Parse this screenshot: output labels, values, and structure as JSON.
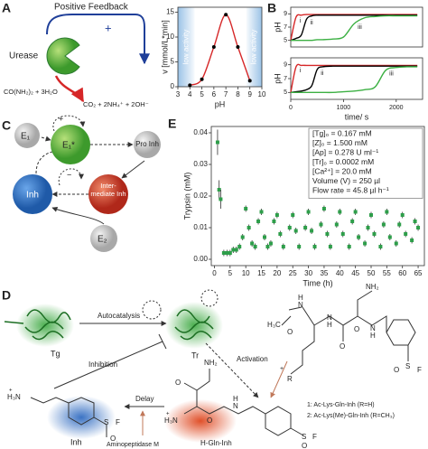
{
  "panel_labels": [
    "A",
    "B",
    "C",
    "D",
    "E"
  ],
  "diagram_a": {
    "feedback": "Positive Feedback",
    "plus": "+",
    "enzyme": "Urease",
    "substrate": "CO(NH₂)₂ + 3H₂O",
    "products": "CO₂ + 2NH₄⁺ + 2OH⁻"
  },
  "diagram_c": {
    "e1": "E₁",
    "e1_active": "E₁*",
    "pro_inh": "Pro Inh",
    "inh": "Inh",
    "intermediate": "Inter-mediate Inh",
    "e2": "E₂",
    "plus": "+",
    "minus": "−"
  },
  "diagram_d": {
    "tg": "Tg",
    "autocatalysis": "Autocatalysis",
    "tr": "Tr",
    "inhibition": "Inhibition",
    "activation": "Activation",
    "delay": "Delay",
    "inh": "Inh",
    "h_gln_inh": "H-Gln-Inh",
    "aminopeptidase": "Aminopeptidase M",
    "compound_1": "1: Ac-Lys-Gln-Inh (R=H)",
    "compound_2": "2: Ac-Lys(Me)-Gln-Inh (R=CH₃)",
    "atoms": [
      "NH₂",
      "O",
      "H₃C",
      "N",
      "H",
      "O",
      "H",
      "N",
      "O",
      "N",
      "H",
      "R",
      "+",
      "S",
      "O",
      "F",
      "H₃N",
      "+",
      "S",
      "O",
      "F",
      "NH₂",
      "O",
      "H₃N",
      "+",
      "O",
      "N",
      "H",
      "S",
      "O",
      "F"
    ]
  },
  "chart_data": [
    {
      "type": "line",
      "xlabel": "pH",
      "ylabel": "v [mmol/L*min]",
      "x": [
        4,
        5,
        6,
        7,
        8,
        9
      ],
      "series": [
        {
          "color": "#d62728",
          "values": [
            0.3,
            1.5,
            8,
            14.5,
            8,
            1.2
          ]
        }
      ],
      "marker_color": "#000000",
      "xlim": [
        3,
        10
      ],
      "xticks": [
        3,
        4,
        5,
        6,
        7,
        8,
        9,
        10
      ],
      "ylim": [
        0,
        16
      ],
      "yticks": [
        0,
        5,
        10,
        15
      ],
      "shaded_regions": [
        {
          "label": "low activity",
          "xlim": [
            3,
            4.4
          ]
        },
        {
          "label": "low activity",
          "xlim": [
            8.7,
            10
          ]
        }
      ]
    },
    {
      "type": "line",
      "ylabel": "pH",
      "x": [
        0,
        100,
        200,
        300,
        400,
        500,
        600,
        800,
        1000,
        1200,
        1400,
        1600,
        1800,
        2000,
        2200,
        2400
      ],
      "series": [
        {
          "name": "i",
          "color": "#d62728",
          "values": [
            5,
            8.5,
            8.8,
            8.9,
            8.9,
            8.9,
            8.9,
            8.9,
            8.9,
            8.9,
            8.9,
            8.9,
            8.9,
            8.9,
            8.9,
            8.9
          ]
        },
        {
          "name": "ii",
          "color": "#000000",
          "values": [
            5,
            5.3,
            5.8,
            8.2,
            8.7,
            8.8,
            8.8,
            8.8,
            8.8,
            8.8,
            8.8,
            8.8,
            8.8,
            8.8,
            8.8,
            8.8
          ]
        },
        {
          "name": "iii",
          "color": "#3cb043",
          "values": [
            5,
            5,
            5,
            5,
            5,
            5.1,
            5.1,
            5.2,
            5.5,
            7.5,
            8.4,
            8.6,
            8.7,
            8.7,
            8.7,
            8.7
          ]
        }
      ],
      "xlim": [
        0,
        2500
      ],
      "ylim": [
        4,
        10
      ],
      "yticks": [
        5,
        7,
        9
      ]
    },
    {
      "type": "line",
      "xlabel": "time/ s",
      "ylabel": "pH",
      "x": [
        0,
        100,
        200,
        300,
        400,
        500,
        600,
        800,
        1000,
        1200,
        1400,
        1600,
        1800,
        2000,
        2200,
        2400
      ],
      "series": [
        {
          "name": "i",
          "color": "#d62728",
          "values": [
            5,
            8.7,
            8.9,
            8.9,
            8.9,
            8.9,
            8.9,
            8.9,
            8.9,
            8.9,
            8.9,
            8.9,
            8.9,
            8.9,
            8.9,
            8.9
          ]
        },
        {
          "name": "ii",
          "color": "#000000",
          "values": [
            5,
            5.1,
            5.2,
            5.4,
            6,
            8.3,
            8.7,
            8.8,
            8.8,
            8.8,
            8.8,
            8.8,
            8.8,
            8.8,
            8.8,
            8.8
          ]
        },
        {
          "name": "iii",
          "color": "#3cb043",
          "values": [
            5,
            5,
            5,
            5,
            5,
            5,
            5,
            5,
            5.1,
            5.2,
            5.4,
            5.8,
            8.2,
            8.6,
            8.7,
            8.7
          ]
        }
      ],
      "xlim": [
        0,
        2500
      ],
      "xticks": [
        0,
        1000,
        2000
      ],
      "ylim": [
        4,
        10
      ],
      "yticks": [
        5,
        7,
        9
      ]
    },
    {
      "type": "scatter",
      "xlabel": "Time (h)",
      "ylabel": "Trypsin (mM)",
      "color": "#2e9e4a",
      "x": [
        1,
        1.5,
        2,
        3,
        4,
        5,
        6,
        7,
        8,
        9,
        10,
        11,
        12,
        13,
        14,
        15,
        16,
        17,
        18,
        19,
        20,
        21,
        22,
        24,
        25,
        26,
        27,
        29,
        30,
        31,
        32,
        34,
        35,
        36,
        37,
        39,
        40,
        41,
        43,
        44,
        45,
        46,
        48,
        49,
        50,
        51,
        53,
        54,
        55,
        56,
        58,
        59,
        60,
        61,
        63,
        64,
        65
      ],
      "values": [
        0.037,
        0.022,
        0.019,
        0.002,
        0.002,
        0.002,
        0.003,
        0.003,
        0.004,
        0.007,
        0.016,
        0.01,
        0.005,
        0.004,
        0.012,
        0.015,
        0.007,
        0.004,
        0.005,
        0.012,
        0.014,
        0.008,
        0.004,
        0.01,
        0.014,
        0.009,
        0.004,
        0.01,
        0.015,
        0.009,
        0.004,
        0.011,
        0.016,
        0.008,
        0.004,
        0.011,
        0.015,
        0.008,
        0.004,
        0.012,
        0.015,
        0.007,
        0.005,
        0.01,
        0.014,
        0.008,
        0.004,
        0.011,
        0.015,
        0.007,
        0.005,
        0.011,
        0.014,
        0.008,
        0.006,
        0.012,
        0.01
      ],
      "errors": [
        0.004,
        0.003,
        0.003,
        0.001,
        0.001,
        0.001,
        0.001,
        0.001,
        0.001,
        0.001,
        0.001,
        0.001,
        0.001,
        0.001,
        0.001,
        0.001,
        0.001,
        0.001,
        0.001,
        0.001,
        0.001,
        0.001,
        0.001,
        0.001,
        0.001,
        0.001,
        0.001,
        0.001,
        0.001,
        0.001,
        0.001,
        0.001,
        0.001,
        0.001,
        0.001,
        0.001,
        0.001,
        0.001,
        0.001,
        0.001,
        0.001,
        0.001,
        0.001,
        0.001,
        0.001,
        0.001,
        0.001,
        0.001,
        0.001,
        0.001,
        0.001,
        0.001,
        0.001,
        0.001,
        0.001,
        0.001,
        0.001
      ],
      "xlim": [
        -1,
        67
      ],
      "xticks": [
        0,
        5,
        10,
        15,
        20,
        25,
        30,
        35,
        40,
        45,
        50,
        55,
        60,
        65
      ],
      "ylim": [
        -0.002,
        0.042
      ],
      "yticks": [
        {
          "value": 0,
          "label": "0.00"
        },
        0.01,
        0.02,
        0.03,
        0.04
      ],
      "annotation_lines": [
        "[Tg]₀ = 0.167 mM",
        "[Z]₀ = 1.500 mM",
        "[Ap] = 0.278 U ml⁻¹",
        "[Tr]₀ = 0.0002 mM",
        "[Ca²⁺] = 20.0 mM",
        "Volume (V) = 250 µl",
        "Flow rate = 45.8 µl h⁻¹"
      ]
    }
  ]
}
